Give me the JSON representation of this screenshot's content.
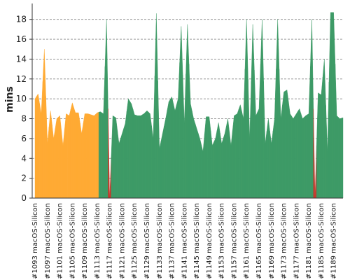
{
  "chart_data": {
    "type": "area",
    "y_label": "mins",
    "categories": [
      "#1093 macOS-Silicon",
      null,
      null,
      null,
      "#1097 macOS-Silicon",
      null,
      null,
      null,
      "#1101 macOS-Silicon",
      null,
      null,
      null,
      "#1105 macOS-Silicon",
      null,
      null,
      null,
      "#1109 macOS-Silicon",
      null,
      null,
      null,
      "#1113 macOS-Silicon",
      null,
      null,
      null,
      "#1117 macOS-Silicon",
      null,
      null,
      null,
      "#1121 macOS-Silicon",
      null,
      null,
      null,
      "#1125 macOS-Silicon",
      null,
      null,
      null,
      "#1129 macOS-Silicon",
      null,
      null,
      null,
      "#1133 macOS-Silicon",
      null,
      null,
      null,
      "#1137 macOS-Silicon",
      null,
      null,
      null,
      "#1141 macOS-Silicon",
      null,
      null,
      null,
      "#1145 macOS-Silicon",
      null,
      null,
      null,
      "#1149 macOS-Silicon",
      null,
      null,
      null,
      "#1153 macOS-Silicon",
      null,
      null,
      null,
      "#1157 macOS-Silicon",
      null,
      null,
      null,
      "#1161 macOS-Silicon",
      null,
      null,
      null,
      "#1165 macOS-Silicon",
      null,
      null,
      null,
      "#1169 macOS-Silicon",
      null,
      null,
      null,
      "#1173 macOS-Silicon",
      null,
      null,
      null,
      "#1177 macOS-Silicon",
      null,
      null,
      null,
      "#1181 macOS-Silicon",
      null,
      null,
      null,
      "#1185 macOS-Silicon",
      null,
      null,
      null,
      "#1189 macOS-Silicon",
      null,
      null,
      null
    ],
    "values": [
      10,
      10.5,
      8.5,
      15,
      5.5,
      8.8,
      6,
      8,
      8.3,
      5.3,
      8.5,
      8.3,
      9.6,
      8.6,
      8.6,
      6.5,
      8.5,
      8.5,
      8.4,
      8.3,
      8.6,
      8.7,
      8.5,
      18,
      0,
      8.3,
      8.1,
      5.5,
      6.5,
      7.5,
      10,
      9.5,
      8.4,
      8.3,
      8.3,
      8.5,
      8.8,
      8.5,
      6,
      18.6,
      5,
      6.5,
      8,
      9.7,
      10.2,
      8.8,
      10,
      17.3,
      7.5,
      17.5,
      9.5,
      8,
      7,
      6,
      4.7,
      8.2,
      8.2,
      5.3,
      6,
      7.6,
      5.5,
      6.5,
      8,
      5.3,
      8.3,
      8.5,
      9.4,
      8,
      18,
      6,
      17.5,
      8.3,
      9,
      18,
      5.5,
      8,
      5.5,
      8,
      18,
      8,
      10.7,
      10.9,
      8.5,
      8,
      8.5,
      9,
      8,
      8.3,
      8.5,
      18,
      0,
      10.6,
      10.4,
      14,
      4.7,
      18.7,
      18.7,
      8.3,
      8,
      8.1
    ],
    "point_colors": [
      "#ffaa33",
      "#ffaa33",
      "#ffaa33",
      "#ffaa33",
      "#ffaa33",
      "#ffaa33",
      "#ffaa33",
      "#ffaa33",
      "#ffaa33",
      "#ffaa33",
      "#ffaa33",
      "#ffaa33",
      "#ffaa33",
      "#ffaa33",
      "#ffaa33",
      "#ffaa33",
      "#ffaa33",
      "#ffaa33",
      "#ffaa33",
      "#ffaa33",
      "#ffaa33",
      "#3d9a66",
      "#3d9a66",
      "#3d9a66",
      "#c0392b",
      "#3d9a66",
      "#3d9a66",
      "#3d9a66",
      "#3d9a66",
      "#3d9a66",
      "#3d9a66",
      "#3d9a66",
      "#3d9a66",
      "#3d9a66",
      "#3d9a66",
      "#3d9a66",
      "#3d9a66",
      "#3d9a66",
      "#3d9a66",
      "#3d9a66",
      "#3d9a66",
      "#3d9a66",
      "#3d9a66",
      "#3d9a66",
      "#3d9a66",
      "#3d9a66",
      "#3d9a66",
      "#3d9a66",
      "#3d9a66",
      "#3d9a66",
      "#3d9a66",
      "#3d9a66",
      "#3d9a66",
      "#3d9a66",
      "#3d9a66",
      "#3d9a66",
      "#3d9a66",
      "#3d9a66",
      "#3d9a66",
      "#3d9a66",
      "#3d9a66",
      "#3d9a66",
      "#3d9a66",
      "#3d9a66",
      "#3d9a66",
      "#3d9a66",
      "#3d9a66",
      "#3d9a66",
      "#3d9a66",
      "#3d9a66",
      "#3d9a66",
      "#3d9a66",
      "#3d9a66",
      "#3d9a66",
      "#3d9a66",
      "#3d9a66",
      "#3d9a66",
      "#3d9a66",
      "#3d9a66",
      "#3d9a66",
      "#3d9a66",
      "#3d9a66",
      "#3d9a66",
      "#3d9a66",
      "#3d9a66",
      "#3d9a66",
      "#3d9a66",
      "#3d9a66",
      "#3d9a66",
      "#3d9a66",
      "#c0392b",
      "#3d9a66",
      "#3d9a66",
      "#3d9a66",
      "#3d9a66",
      "#3d9a66",
      "#3d9a66",
      "#3d9a66",
      "#3d9a66",
      "#3d9a66"
    ],
    "ylim": [
      0,
      19.6
    ],
    "yticks": [
      0,
      2,
      4,
      6,
      8,
      10,
      12,
      14,
      16,
      18
    ],
    "grid": true
  }
}
